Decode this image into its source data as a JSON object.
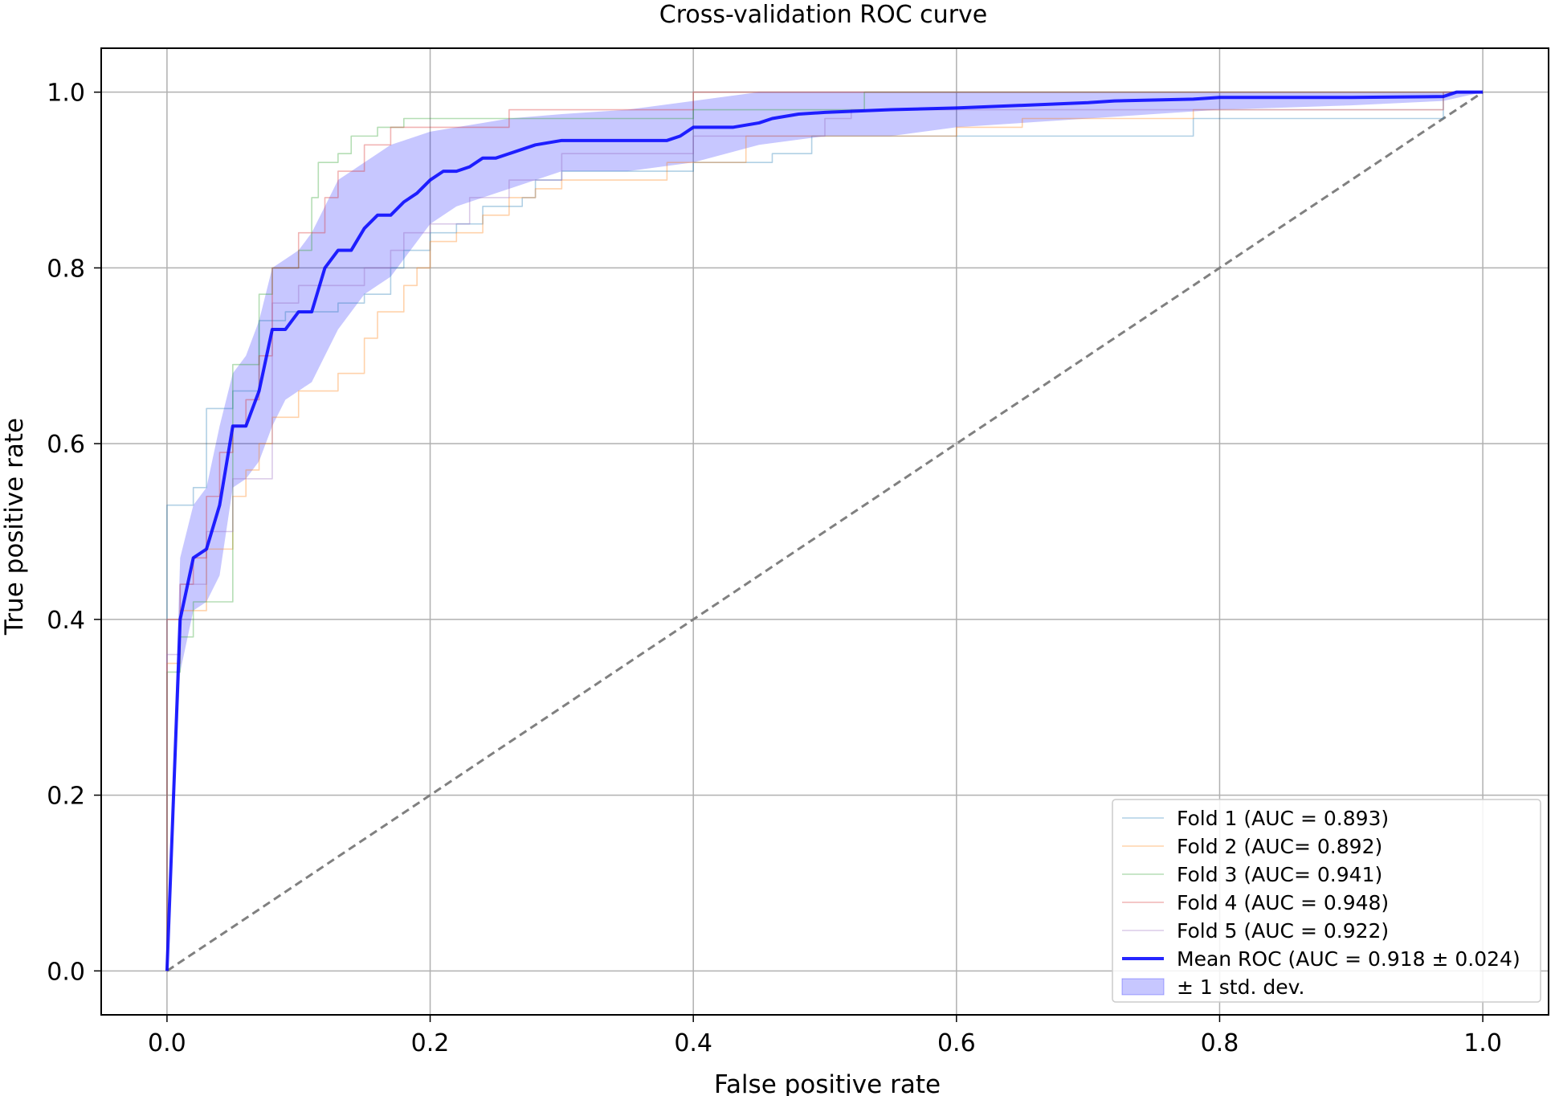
{
  "chart_data": {
    "type": "line",
    "title": "Cross-validation ROC curve",
    "xlabel": "False positive rate",
    "ylabel": "True positive rate",
    "xlim": [
      -0.05,
      1.05
    ],
    "ylim": [
      -0.05,
      1.05
    ],
    "x_ticks": [
      "0.0",
      "0.2",
      "0.4",
      "0.6",
      "0.8",
      "1.0"
    ],
    "y_ticks": [
      "0.0",
      "0.2",
      "0.4",
      "0.6",
      "0.8",
      "1.0"
    ],
    "grid": true,
    "legend_position": "bottom-right",
    "chance_line": {
      "x": [
        0,
        1
      ],
      "y": [
        0,
        1
      ],
      "color": "#808080",
      "style": "dashed"
    },
    "series": [
      {
        "name": "Fold 1 (AUC = 0.893)",
        "color": "#1f77b4",
        "points": [
          [
            0,
            0
          ],
          [
            0,
            0.53
          ],
          [
            0.02,
            0.53
          ],
          [
            0.02,
            0.55
          ],
          [
            0.03,
            0.55
          ],
          [
            0.03,
            0.64
          ],
          [
            0.05,
            0.64
          ],
          [
            0.05,
            0.66
          ],
          [
            0.07,
            0.66
          ],
          [
            0.07,
            0.74
          ],
          [
            0.09,
            0.74
          ],
          [
            0.09,
            0.75
          ],
          [
            0.13,
            0.75
          ],
          [
            0.13,
            0.76
          ],
          [
            0.15,
            0.76
          ],
          [
            0.15,
            0.77
          ],
          [
            0.17,
            0.77
          ],
          [
            0.17,
            0.8
          ],
          [
            0.18,
            0.8
          ],
          [
            0.18,
            0.82
          ],
          [
            0.2,
            0.82
          ],
          [
            0.2,
            0.84
          ],
          [
            0.22,
            0.84
          ],
          [
            0.22,
            0.85
          ],
          [
            0.24,
            0.85
          ],
          [
            0.24,
            0.87
          ],
          [
            0.27,
            0.87
          ],
          [
            0.27,
            0.88
          ],
          [
            0.28,
            0.88
          ],
          [
            0.28,
            0.9
          ],
          [
            0.3,
            0.9
          ],
          [
            0.3,
            0.91
          ],
          [
            0.4,
            0.91
          ],
          [
            0.4,
            0.92
          ],
          [
            0.46,
            0.92
          ],
          [
            0.46,
            0.93
          ],
          [
            0.49,
            0.93
          ],
          [
            0.49,
            0.95
          ],
          [
            0.78,
            0.95
          ],
          [
            0.78,
            0.97
          ],
          [
            0.97,
            0.97
          ],
          [
            0.97,
            1.0
          ],
          [
            1.0,
            1.0
          ]
        ]
      },
      {
        "name": "Fold 2 (AUC= 0.892)",
        "color": "#ff7f0e",
        "points": [
          [
            0,
            0
          ],
          [
            0,
            0.35
          ],
          [
            0.01,
            0.35
          ],
          [
            0.01,
            0.41
          ],
          [
            0.03,
            0.41
          ],
          [
            0.03,
            0.48
          ],
          [
            0.05,
            0.48
          ],
          [
            0.05,
            0.54
          ],
          [
            0.06,
            0.54
          ],
          [
            0.06,
            0.57
          ],
          [
            0.07,
            0.57
          ],
          [
            0.07,
            0.6
          ],
          [
            0.08,
            0.6
          ],
          [
            0.08,
            0.63
          ],
          [
            0.1,
            0.63
          ],
          [
            0.1,
            0.66
          ],
          [
            0.13,
            0.66
          ],
          [
            0.13,
            0.68
          ],
          [
            0.15,
            0.68
          ],
          [
            0.15,
            0.72
          ],
          [
            0.16,
            0.72
          ],
          [
            0.16,
            0.75
          ],
          [
            0.18,
            0.75
          ],
          [
            0.18,
            0.78
          ],
          [
            0.19,
            0.78
          ],
          [
            0.19,
            0.8
          ],
          [
            0.2,
            0.8
          ],
          [
            0.2,
            0.83
          ],
          [
            0.22,
            0.83
          ],
          [
            0.22,
            0.84
          ],
          [
            0.24,
            0.84
          ],
          [
            0.24,
            0.86
          ],
          [
            0.26,
            0.86
          ],
          [
            0.26,
            0.88
          ],
          [
            0.28,
            0.88
          ],
          [
            0.28,
            0.89
          ],
          [
            0.3,
            0.89
          ],
          [
            0.3,
            0.9
          ],
          [
            0.38,
            0.9
          ],
          [
            0.38,
            0.92
          ],
          [
            0.44,
            0.92
          ],
          [
            0.44,
            0.95
          ],
          [
            0.6,
            0.95
          ],
          [
            0.6,
            0.96
          ],
          [
            0.65,
            0.96
          ],
          [
            0.65,
            0.97
          ],
          [
            0.78,
            0.97
          ],
          [
            0.78,
            0.98
          ],
          [
            0.97,
            0.98
          ],
          [
            0.97,
            1.0
          ],
          [
            1.0,
            1.0
          ]
        ]
      },
      {
        "name": "Fold 3 (AUC= 0.941)",
        "color": "#2ca02c",
        "points": [
          [
            0,
            0
          ],
          [
            0,
            0.34
          ],
          [
            0.01,
            0.34
          ],
          [
            0.01,
            0.38
          ],
          [
            0.02,
            0.38
          ],
          [
            0.02,
            0.42
          ],
          [
            0.05,
            0.42
          ],
          [
            0.05,
            0.69
          ],
          [
            0.07,
            0.69
          ],
          [
            0.07,
            0.77
          ],
          [
            0.08,
            0.77
          ],
          [
            0.08,
            0.8
          ],
          [
            0.1,
            0.8
          ],
          [
            0.1,
            0.82
          ],
          [
            0.11,
            0.82
          ],
          [
            0.11,
            0.88
          ],
          [
            0.115,
            0.88
          ],
          [
            0.115,
            0.92
          ],
          [
            0.13,
            0.92
          ],
          [
            0.13,
            0.93
          ],
          [
            0.14,
            0.93
          ],
          [
            0.14,
            0.95
          ],
          [
            0.16,
            0.95
          ],
          [
            0.16,
            0.96
          ],
          [
            0.18,
            0.96
          ],
          [
            0.18,
            0.97
          ],
          [
            0.4,
            0.97
          ],
          [
            0.4,
            0.98
          ],
          [
            0.53,
            0.98
          ],
          [
            0.53,
            1.0
          ],
          [
            1.0,
            1.0
          ]
        ]
      },
      {
        "name": "Fold 4 (AUC = 0.948)",
        "color": "#d62728",
        "points": [
          [
            0,
            0
          ],
          [
            0,
            0.4
          ],
          [
            0.01,
            0.4
          ],
          [
            0.01,
            0.44
          ],
          [
            0.02,
            0.44
          ],
          [
            0.02,
            0.47
          ],
          [
            0.03,
            0.47
          ],
          [
            0.03,
            0.54
          ],
          [
            0.04,
            0.54
          ],
          [
            0.04,
            0.59
          ],
          [
            0.05,
            0.59
          ],
          [
            0.05,
            0.62
          ],
          [
            0.06,
            0.62
          ],
          [
            0.06,
            0.65
          ],
          [
            0.07,
            0.65
          ],
          [
            0.07,
            0.7
          ],
          [
            0.08,
            0.7
          ],
          [
            0.08,
            0.8
          ],
          [
            0.1,
            0.8
          ],
          [
            0.1,
            0.84
          ],
          [
            0.12,
            0.84
          ],
          [
            0.12,
            0.88
          ],
          [
            0.13,
            0.88
          ],
          [
            0.13,
            0.91
          ],
          [
            0.15,
            0.91
          ],
          [
            0.15,
            0.94
          ],
          [
            0.17,
            0.94
          ],
          [
            0.17,
            0.96
          ],
          [
            0.26,
            0.96
          ],
          [
            0.26,
            0.97
          ],
          [
            0.26,
            0.98
          ],
          [
            0.4,
            0.98
          ],
          [
            0.4,
            1.0
          ],
          [
            1.0,
            1.0
          ]
        ]
      },
      {
        "name": "Fold 5 (AUC = 0.922)",
        "color": "#9467bd",
        "points": [
          [
            0,
            0
          ],
          [
            0,
            0.36
          ],
          [
            0.01,
            0.36
          ],
          [
            0.01,
            0.44
          ],
          [
            0.03,
            0.44
          ],
          [
            0.03,
            0.5
          ],
          [
            0.05,
            0.5
          ],
          [
            0.05,
            0.56
          ],
          [
            0.08,
            0.56
          ],
          [
            0.08,
            0.76
          ],
          [
            0.1,
            0.76
          ],
          [
            0.1,
            0.78
          ],
          [
            0.15,
            0.78
          ],
          [
            0.15,
            0.8
          ],
          [
            0.17,
            0.8
          ],
          [
            0.17,
            0.82
          ],
          [
            0.18,
            0.82
          ],
          [
            0.18,
            0.84
          ],
          [
            0.2,
            0.84
          ],
          [
            0.2,
            0.85
          ],
          [
            0.23,
            0.85
          ],
          [
            0.23,
            0.88
          ],
          [
            0.26,
            0.88
          ],
          [
            0.26,
            0.9
          ],
          [
            0.3,
            0.9
          ],
          [
            0.3,
            0.93
          ],
          [
            0.4,
            0.93
          ],
          [
            0.4,
            0.95
          ],
          [
            0.5,
            0.95
          ],
          [
            0.5,
            0.97
          ],
          [
            0.52,
            0.97
          ],
          [
            0.52,
            0.98
          ],
          [
            0.97,
            0.98
          ],
          [
            0.97,
            1.0
          ],
          [
            1.0,
            1.0
          ]
        ]
      },
      {
        "name": "Mean ROC (AUC = 0.918 ± 0.024)",
        "color": "#0000ff",
        "points": [
          [
            0,
            0
          ],
          [
            0.01,
            0.4
          ],
          [
            0.02,
            0.47
          ],
          [
            0.03,
            0.48
          ],
          [
            0.04,
            0.53
          ],
          [
            0.05,
            0.62
          ],
          [
            0.06,
            0.62
          ],
          [
            0.07,
            0.66
          ],
          [
            0.08,
            0.73
          ],
          [
            0.09,
            0.73
          ],
          [
            0.1,
            0.75
          ],
          [
            0.11,
            0.75
          ],
          [
            0.12,
            0.8
          ],
          [
            0.13,
            0.82
          ],
          [
            0.14,
            0.82
          ],
          [
            0.15,
            0.845
          ],
          [
            0.16,
            0.86
          ],
          [
            0.17,
            0.86
          ],
          [
            0.18,
            0.875
          ],
          [
            0.19,
            0.885
          ],
          [
            0.2,
            0.9
          ],
          [
            0.21,
            0.91
          ],
          [
            0.22,
            0.91
          ],
          [
            0.23,
            0.915
          ],
          [
            0.24,
            0.925
          ],
          [
            0.25,
            0.925
          ],
          [
            0.26,
            0.93
          ],
          [
            0.28,
            0.94
          ],
          [
            0.3,
            0.945
          ],
          [
            0.35,
            0.945
          ],
          [
            0.38,
            0.945
          ],
          [
            0.39,
            0.95
          ],
          [
            0.4,
            0.96
          ],
          [
            0.43,
            0.96
          ],
          [
            0.45,
            0.965
          ],
          [
            0.46,
            0.97
          ],
          [
            0.48,
            0.975
          ],
          [
            0.5,
            0.977
          ],
          [
            0.55,
            0.98
          ],
          [
            0.6,
            0.982
          ],
          [
            0.65,
            0.985
          ],
          [
            0.7,
            0.988
          ],
          [
            0.72,
            0.99
          ],
          [
            0.78,
            0.992
          ],
          [
            0.8,
            0.994
          ],
          [
            0.9,
            0.994
          ],
          [
            0.97,
            0.995
          ],
          [
            0.98,
            1.0
          ],
          [
            1.0,
            1.0
          ]
        ]
      }
    ],
    "std_band": {
      "name": "± 1 std. dev.",
      "color": "#0000ff",
      "x": [
        0.01,
        0.02,
        0.03,
        0.04,
        0.05,
        0.06,
        0.07,
        0.08,
        0.09,
        0.1,
        0.11,
        0.12,
        0.13,
        0.14,
        0.15,
        0.16,
        0.17,
        0.18,
        0.19,
        0.2,
        0.22,
        0.24,
        0.26,
        0.3,
        0.35,
        0.4,
        0.45,
        0.5,
        0.55,
        0.6,
        0.7,
        0.8,
        0.9,
        0.97,
        1.0
      ],
      "upper": [
        0.47,
        0.53,
        0.55,
        0.62,
        0.68,
        0.7,
        0.74,
        0.8,
        0.81,
        0.82,
        0.84,
        0.87,
        0.9,
        0.91,
        0.92,
        0.93,
        0.94,
        0.945,
        0.95,
        0.955,
        0.96,
        0.965,
        0.97,
        0.975,
        0.98,
        0.99,
        1.0,
        1.0,
        1.0,
        1.0,
        1.0,
        1.0,
        1.0,
        1.0,
        1.0
      ],
      "lower": [
        0.34,
        0.41,
        0.42,
        0.45,
        0.55,
        0.56,
        0.58,
        0.62,
        0.65,
        0.66,
        0.67,
        0.7,
        0.73,
        0.75,
        0.77,
        0.78,
        0.79,
        0.81,
        0.83,
        0.85,
        0.87,
        0.88,
        0.89,
        0.91,
        0.91,
        0.92,
        0.94,
        0.95,
        0.95,
        0.96,
        0.97,
        0.98,
        0.985,
        0.99,
        1.0
      ]
    }
  }
}
